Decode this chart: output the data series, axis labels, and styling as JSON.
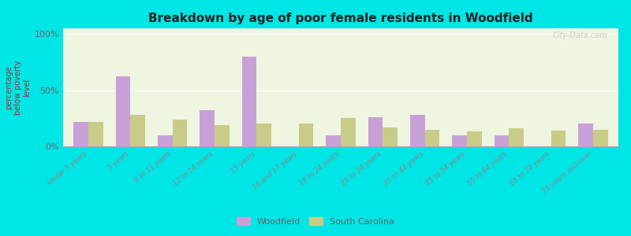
{
  "title": "Breakdown by age of poor female residents in Woodfield",
  "ylabel": "percentage\nbelow poverty\nlevel",
  "categories": [
    "Under 5 years",
    "5 years",
    "6 to 11 years",
    "12 to 14 years",
    "15 years",
    "16 and 17 years",
    "18 to 24 years",
    "25 to 34 years",
    "35 to 44 years",
    "45 to 54 years",
    "55 to 64 years",
    "65 to 74 years",
    "75 years and over"
  ],
  "woodfield_values": [
    22,
    62,
    10,
    32,
    80,
    0,
    10,
    26,
    28,
    10,
    10,
    0,
    20
  ],
  "sc_values": [
    22,
    28,
    24,
    19,
    20,
    20,
    25,
    17,
    15,
    13,
    16,
    14,
    15
  ],
  "woodfield_color": "#c8a0d8",
  "sc_color": "#c8cc88",
  "title_color": "#222222",
  "background_outer": "#00e5e5",
  "background_plot": "#eef5e0",
  "yticks": [
    0,
    50,
    100
  ],
  "ytick_labels": [
    "0%",
    "50%",
    "100%"
  ],
  "ylim": [
    0,
    105
  ],
  "bar_width": 0.35,
  "legend_woodfield": "Woodfield",
  "legend_sc": "South Carolina",
  "watermark": "City-Data.com"
}
